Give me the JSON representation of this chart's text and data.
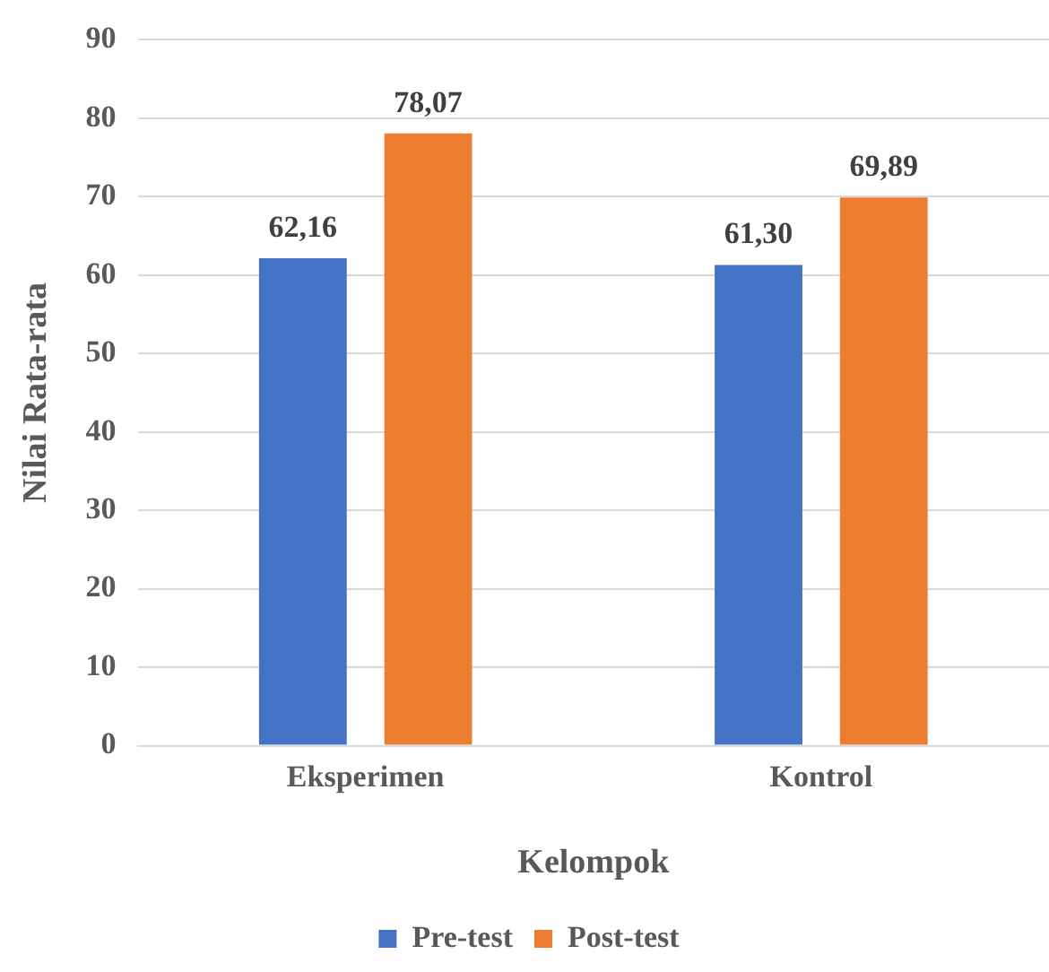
{
  "chart_data": {
    "type": "bar",
    "xlabel": "Kelompok",
    "ylabel": "Nilai Rata-rata",
    "categories": [
      "Eksperimen",
      "Kontrol"
    ],
    "series": [
      {
        "name": "Pre-test",
        "color": "#4472c4",
        "values": [
          62.16,
          61.3
        ],
        "value_labels": [
          "62,16",
          "61,30"
        ]
      },
      {
        "name": "Post-test",
        "color": "#ed7d31",
        "values": [
          78.07,
          69.89
        ],
        "value_labels": [
          "78,07",
          "69,89"
        ]
      }
    ],
    "ylim": [
      0,
      90
    ],
    "yticks": [
      0,
      10,
      20,
      30,
      40,
      50,
      60,
      70,
      80,
      90
    ],
    "grid": "y",
    "legend": "bottom"
  }
}
